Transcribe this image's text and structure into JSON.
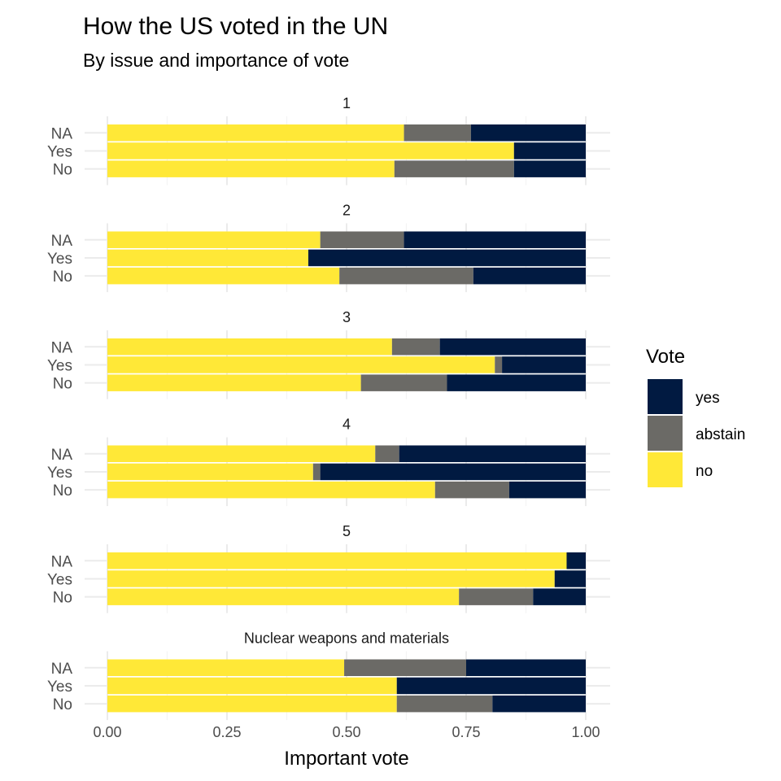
{
  "chart_data": {
    "type": "bar",
    "orientation": "horizontal",
    "stacked": "fill",
    "title": "How the US voted in the UN",
    "subtitle": "By issue and importance of vote",
    "xlabel": "Important vote",
    "ylabel": "",
    "xlim": [
      0,
      1
    ],
    "x_ticks": [
      "0.00",
      "0.25",
      "0.50",
      "0.75",
      "1.00"
    ],
    "x_tick_values": [
      0,
      0.25,
      0.5,
      0.75,
      1
    ],
    "grid": true,
    "legend": {
      "title": "Vote",
      "position": "right",
      "entries": [
        {
          "label": "yes",
          "color": "#011A41"
        },
        {
          "label": "abstain",
          "color": "#6B6A66"
        },
        {
          "label": "no",
          "color": "#FFE837"
        }
      ]
    },
    "stack_order": [
      "no",
      "abstain",
      "yes"
    ],
    "colors": {
      "no": "#FFE837",
      "abstain": "#6B6A66",
      "yes": "#011A41"
    },
    "facets": [
      {
        "label": "1",
        "rows": [
          {
            "category": "NA",
            "no": 0.62,
            "abstain": 0.14,
            "yes": 0.24
          },
          {
            "category": "Yes",
            "no": 0.85,
            "abstain": 0.0,
            "yes": 0.15
          },
          {
            "category": "No",
            "no": 0.6,
            "abstain": 0.25,
            "yes": 0.15
          }
        ]
      },
      {
        "label": "2",
        "rows": [
          {
            "category": "NA",
            "no": 0.445,
            "abstain": 0.175,
            "yes": 0.38
          },
          {
            "category": "Yes",
            "no": 0.42,
            "abstain": 0.0,
            "yes": 0.58
          },
          {
            "category": "No",
            "no": 0.485,
            "abstain": 0.28,
            "yes": 0.235
          }
        ]
      },
      {
        "label": "3",
        "rows": [
          {
            "category": "NA",
            "no": 0.595,
            "abstain": 0.1,
            "yes": 0.305
          },
          {
            "category": "Yes",
            "no": 0.81,
            "abstain": 0.015,
            "yes": 0.175
          },
          {
            "category": "No",
            "no": 0.53,
            "abstain": 0.18,
            "yes": 0.29
          }
        ]
      },
      {
        "label": "4",
        "rows": [
          {
            "category": "NA",
            "no": 0.56,
            "abstain": 0.05,
            "yes": 0.39
          },
          {
            "category": "Yes",
            "no": 0.43,
            "abstain": 0.015,
            "yes": 0.555
          },
          {
            "category": "No",
            "no": 0.685,
            "abstain": 0.155,
            "yes": 0.16
          }
        ]
      },
      {
        "label": "5",
        "rows": [
          {
            "category": "NA",
            "no": 0.96,
            "abstain": 0.0,
            "yes": 0.04
          },
          {
            "category": "Yes",
            "no": 0.935,
            "abstain": 0.0,
            "yes": 0.065
          },
          {
            "category": "No",
            "no": 0.735,
            "abstain": 0.155,
            "yes": 0.11
          }
        ]
      },
      {
        "label": "Nuclear weapons and materials",
        "rows": [
          {
            "category": "NA",
            "no": 0.495,
            "abstain": 0.255,
            "yes": 0.25
          },
          {
            "category": "Yes",
            "no": 0.605,
            "abstain": 0.0,
            "yes": 0.395
          },
          {
            "category": "No",
            "no": 0.605,
            "abstain": 0.2,
            "yes": 0.195
          }
        ]
      }
    ]
  }
}
